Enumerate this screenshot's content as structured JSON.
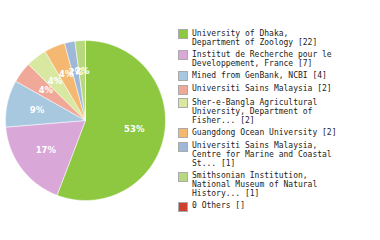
{
  "chart_data": {
    "type": "pie",
    "categories": [
      "University of Dhaka,\nDepartment of Zoology [22]",
      "Institut de Recherche pour le\nDeveloppement, France [7]",
      "Mined from GenBank, NCBI [4]",
      "Universiti Sains Malaysia [2]",
      "Sher-e-Bangla Agricultural\nUniversity, Department of\nFisher... [2]",
      "Guangdong Ocean University [2]",
      "Universiti Sains Malaysia,\nCentre for Marine and Coastal\nSt... [1]",
      "Smithsonian Institution,\nNational Museum of Natural\nHistory... [1]",
      "0 Others []"
    ],
    "values": [
      53,
      17,
      9,
      4,
      4,
      4,
      2,
      2,
      0.0024
    ],
    "value_labels": [
      "53%",
      "17%",
      "9%",
      "4%",
      "4%",
      "4%",
      "2%",
      "2%",
      null
    ],
    "colors": [
      "#8DC840",
      "#D9A8D9",
      "#A8C8E0",
      "#F0A898",
      "#D8E8A0",
      "#F5B870",
      "#A0B8D8",
      "#B8D880",
      "#D04030"
    ],
    "data_labels": true,
    "legend": "right"
  }
}
